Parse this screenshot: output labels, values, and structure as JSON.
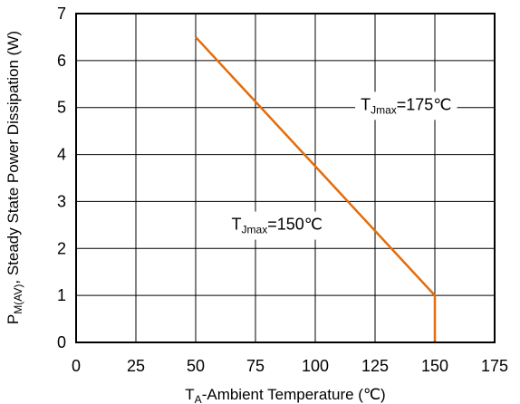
{
  "chart_data": {
    "type": "line",
    "title": "",
    "xlabel": {
      "main": "T",
      "sub": "A",
      "rest": "-Ambient Temperature (℃)"
    },
    "ylabel": {
      "main": "P",
      "sub": "M(AV)",
      "rest": ", Steady State Power Dissipation (W)"
    },
    "xlim": [
      0,
      175
    ],
    "ylim": [
      0,
      7
    ],
    "xticks": [
      0,
      25,
      50,
      75,
      100,
      125,
      150,
      175
    ],
    "yticks": [
      0,
      1,
      2,
      3,
      4,
      5,
      6,
      7
    ],
    "grid": true,
    "series": [
      {
        "color": "#e46c0a",
        "x": [
          50,
          150,
          150
        ],
        "y": [
          6.5,
          1,
          0
        ]
      }
    ],
    "annotations": [
      {
        "main": "T",
        "sub": "Jmax",
        "rest": "=175℃",
        "x": 138,
        "y": 4.95
      },
      {
        "main": "T",
        "sub": "Jmax",
        "rest": "=150℃",
        "x": 84,
        "y": 2.4
      }
    ]
  }
}
